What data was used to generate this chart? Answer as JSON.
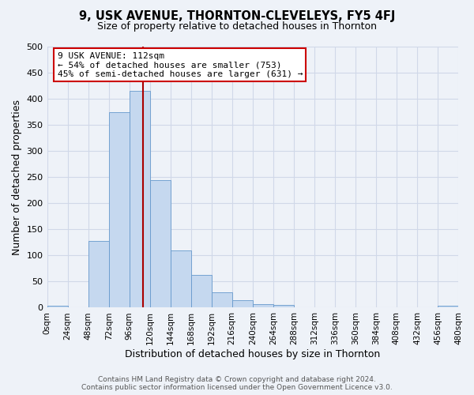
{
  "title": "9, USK AVENUE, THORNTON-CLEVELEYS, FY5 4FJ",
  "subtitle": "Size of property relative to detached houses in Thornton",
  "xlabel": "Distribution of detached houses by size in Thornton",
  "ylabel": "Number of detached properties",
  "bar_values": [
    3,
    0,
    128,
    375,
    415,
    245,
    110,
    63,
    30,
    15,
    7,
    5,
    0,
    0,
    0,
    0,
    0,
    0,
    0,
    3
  ],
  "bin_edges": [
    0,
    24,
    48,
    72,
    96,
    120,
    144,
    168,
    192,
    216,
    240,
    264,
    288,
    312,
    336,
    360,
    384,
    408,
    432,
    456,
    480
  ],
  "bar_color": "#c5d8ef",
  "bar_edge_color": "#6699cc",
  "vline_x": 112,
  "vline_color": "#aa0000",
  "ylim": [
    0,
    500
  ],
  "xlim": [
    0,
    480
  ],
  "annotation_title": "9 USK AVENUE: 112sqm",
  "annotation_line1": "← 54% of detached houses are smaller (753)",
  "annotation_line2": "45% of semi-detached houses are larger (631) →",
  "annotation_box_color": "#ffffff",
  "annotation_border_color": "#cc0000",
  "footer_line1": "Contains HM Land Registry data © Crown copyright and database right 2024.",
  "footer_line2": "Contains public sector information licensed under the Open Government Licence v3.0.",
  "tick_labels": [
    "0sqm",
    "24sqm",
    "48sqm",
    "72sqm",
    "96sqm",
    "120sqm",
    "144sqm",
    "168sqm",
    "192sqm",
    "216sqm",
    "240sqm",
    "264sqm",
    "288sqm",
    "312sqm",
    "336sqm",
    "360sqm",
    "384sqm",
    "408sqm",
    "432sqm",
    "456sqm",
    "480sqm"
  ],
  "grid_color": "#d0d8e8",
  "bg_color": "#eef2f8",
  "yticks": [
    0,
    50,
    100,
    150,
    200,
    250,
    300,
    350,
    400,
    450,
    500
  ]
}
